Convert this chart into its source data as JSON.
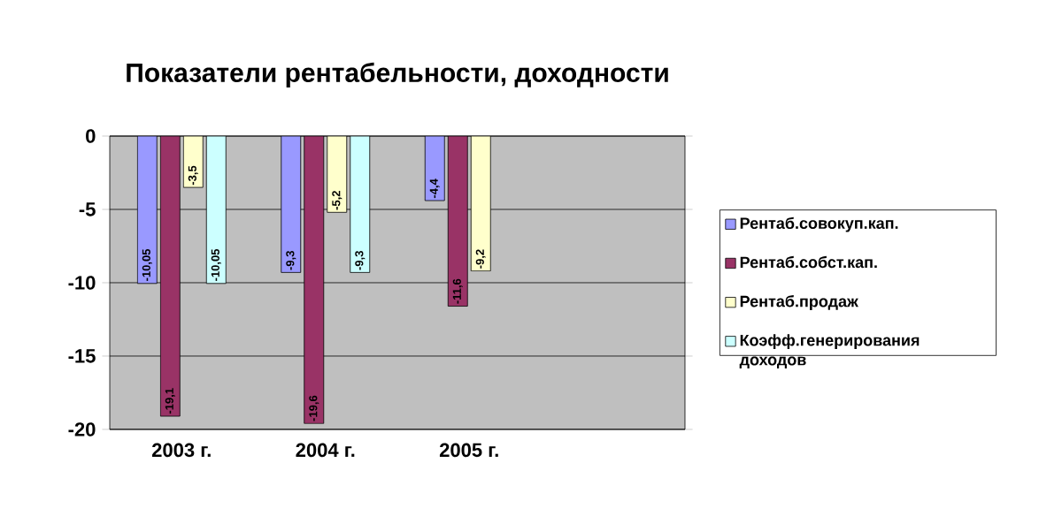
{
  "chart_data": {
    "type": "bar",
    "title": "Показатели рентабельности, доходности",
    "categories": [
      "2003 г.",
      "2004 г.",
      "2005 г.",
      null
    ],
    "series": [
      {
        "name": "Рентаб.совокуп.кап.",
        "color": "#9999ff",
        "values": [
          -10.05,
          -9.3,
          -4.4,
          null
        ],
        "value_labels": [
          "-10,05",
          "-9,3",
          "-4,4",
          null
        ]
      },
      {
        "name": "Рентаб.собст.кап.",
        "color": "#993366",
        "values": [
          -19.1,
          -19.6,
          -11.6,
          null
        ],
        "value_labels": [
          "-19,1",
          "-19,6",
          "-11,6",
          null
        ]
      },
      {
        "name": "Рентаб.продаж",
        "color": "#ffffcc",
        "values": [
          -3.5,
          -5.2,
          -9.2,
          null
        ],
        "value_labels": [
          "-3,5",
          "-5,2",
          "-9,2",
          null
        ]
      },
      {
        "name": "Коэфф.генерирования доходов",
        "color": "#ccffff",
        "values": [
          -10.05,
          -9.3,
          null,
          null
        ],
        "value_labels": [
          "-10,05",
          "-9,3",
          null,
          null
        ]
      }
    ],
    "ylim": [
      -20,
      0
    ],
    "yticks": [
      -20,
      -15,
      -10,
      -5,
      0
    ],
    "grid": "y",
    "legend": "right"
  }
}
